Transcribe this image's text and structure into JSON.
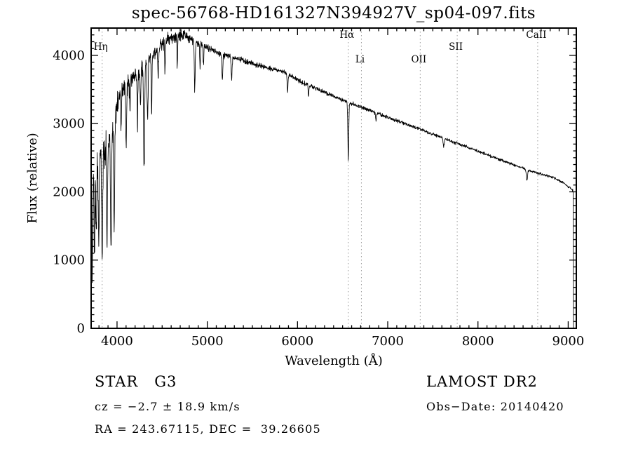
{
  "title": "spec-56768-HD161327N394927V_sp04-097.fits",
  "chart_data": {
    "type": "line",
    "title": "spec-56768-HD161327N394927V_sp04-097.fits",
    "xlabel": "Wavelength (Å)",
    "ylabel": "Flux (relative)",
    "xlim": [
      3713,
      9090
    ],
    "ylim": [
      0,
      4400
    ],
    "x_ticks": [
      4000,
      5000,
      6000,
      7000,
      8000,
      9000
    ],
    "y_ticks": [
      0,
      1000,
      2000,
      3000,
      4000
    ],
    "x_minor_step": 100,
    "y_minor_step": 100,
    "line_color": "#000000",
    "marker_line_color": "#9a9a9a",
    "seed": 20140420,
    "line_markers": [
      {
        "label": "Hη",
        "wavelength": 3835,
        "row": 1
      },
      {
        "label": "Hα",
        "wavelength": 6563,
        "row": 0
      },
      {
        "label": "Li",
        "wavelength": 6708,
        "row": 2
      },
      {
        "label": "OII",
        "wavelength": 7360,
        "row": 2
      },
      {
        "label": "SII",
        "wavelength": 7770,
        "row": 1
      },
      {
        "label": "CaII",
        "wavelength": 8662,
        "row": 0
      }
    ],
    "continuum": [
      [
        3713,
        2300
      ],
      [
        3730,
        2450
      ],
      [
        3760,
        2550
      ],
      [
        3790,
        2600
      ],
      [
        3830,
        2550
      ],
      [
        3870,
        2700
      ],
      [
        3910,
        2800
      ],
      [
        3950,
        3000
      ],
      [
        4000,
        3300
      ],
      [
        4050,
        3500
      ],
      [
        4150,
        3650
      ],
      [
        4250,
        3750
      ],
      [
        4350,
        3950
      ],
      [
        4450,
        4100
      ],
      [
        4550,
        4220
      ],
      [
        4650,
        4280
      ],
      [
        4750,
        4300
      ],
      [
        4850,
        4220
      ],
      [
        4950,
        4150
      ],
      [
        5050,
        4080
      ],
      [
        5150,
        4020
      ],
      [
        5250,
        3980
      ],
      [
        5350,
        3950
      ],
      [
        5450,
        3900
      ],
      [
        5550,
        3860
      ],
      [
        5650,
        3820
      ],
      [
        5750,
        3790
      ],
      [
        5850,
        3760
      ],
      [
        5950,
        3680
      ],
      [
        6050,
        3600
      ],
      [
        6150,
        3550
      ],
      [
        6250,
        3490
      ],
      [
        6350,
        3430
      ],
      [
        6450,
        3370
      ],
      [
        6550,
        3320
      ],
      [
        6650,
        3270
      ],
      [
        6750,
        3220
      ],
      [
        6850,
        3170
      ],
      [
        6950,
        3120
      ],
      [
        7050,
        3070
      ],
      [
        7150,
        3020
      ],
      [
        7250,
        2970
      ],
      [
        7350,
        2920
      ],
      [
        7450,
        2870
      ],
      [
        7550,
        2820
      ],
      [
        7650,
        2770
      ],
      [
        7750,
        2720
      ],
      [
        7850,
        2670
      ],
      [
        7950,
        2620
      ],
      [
        8050,
        2570
      ],
      [
        8150,
        2520
      ],
      [
        8250,
        2470
      ],
      [
        8350,
        2420
      ],
      [
        8450,
        2370
      ],
      [
        8550,
        2320
      ],
      [
        8650,
        2280
      ],
      [
        8750,
        2240
      ],
      [
        8850,
        2200
      ],
      [
        8950,
        2130
      ],
      [
        9030,
        2050
      ],
      [
        9055,
        2010
      ]
    ],
    "absorption_lines": [
      [
        3727,
        1500,
        5
      ],
      [
        3750,
        1300,
        5
      ],
      [
        3770,
        1100,
        5
      ],
      [
        3798,
        1300,
        5
      ],
      [
        3835,
        1500,
        5
      ],
      [
        3889,
        1500,
        5
      ],
      [
        3933,
        1600,
        6
      ],
      [
        3968,
        1500,
        6
      ],
      [
        4045,
        500,
        4
      ],
      [
        4101,
        950,
        5
      ],
      [
        4144,
        450,
        4
      ],
      [
        4226,
        750,
        4
      ],
      [
        4260,
        500,
        4
      ],
      [
        4300,
        1500,
        6
      ],
      [
        4340,
        900,
        5
      ],
      [
        4383,
        950,
        4
      ],
      [
        4455,
        450,
        4
      ],
      [
        4531,
        420,
        4
      ],
      [
        4668,
        430,
        4
      ],
      [
        4861,
        700,
        5
      ],
      [
        4920,
        350,
        4
      ],
      [
        4957,
        300,
        4
      ],
      [
        5167,
        380,
        5
      ],
      [
        5270,
        330,
        5
      ],
      [
        5890,
        260,
        5
      ],
      [
        6122,
        150,
        4
      ],
      [
        6563,
        840,
        5
      ],
      [
        6870,
        120,
        5
      ],
      [
        7620,
        120,
        6
      ],
      [
        8542,
        160,
        7
      ]
    ],
    "noise_profile": [
      [
        3713,
        300
      ],
      [
        3780,
        280
      ],
      [
        3850,
        240
      ],
      [
        3920,
        200
      ],
      [
        4000,
        140
      ],
      [
        4100,
        110
      ],
      [
        4300,
        95
      ],
      [
        4500,
        80
      ],
      [
        4700,
        70
      ],
      [
        4900,
        55
      ],
      [
        5100,
        40
      ],
      [
        5400,
        32
      ],
      [
        5800,
        28
      ],
      [
        6200,
        26
      ],
      [
        6563,
        24
      ],
      [
        7000,
        22
      ],
      [
        7500,
        20
      ],
      [
        8000,
        18
      ],
      [
        8500,
        16
      ],
      [
        9000,
        14
      ]
    ],
    "cutoff": {
      "wavelength": 9055,
      "drop_to": 0
    }
  },
  "footer": {
    "class_label": "STAR   G3",
    "survey": "LAMOST DR2",
    "cz": "cz = −2.7 ± 18.9 km/s",
    "obs_date": "Obs−Date: 20140420",
    "coords": "RA = 243.67115, DEC =  39.26605"
  }
}
